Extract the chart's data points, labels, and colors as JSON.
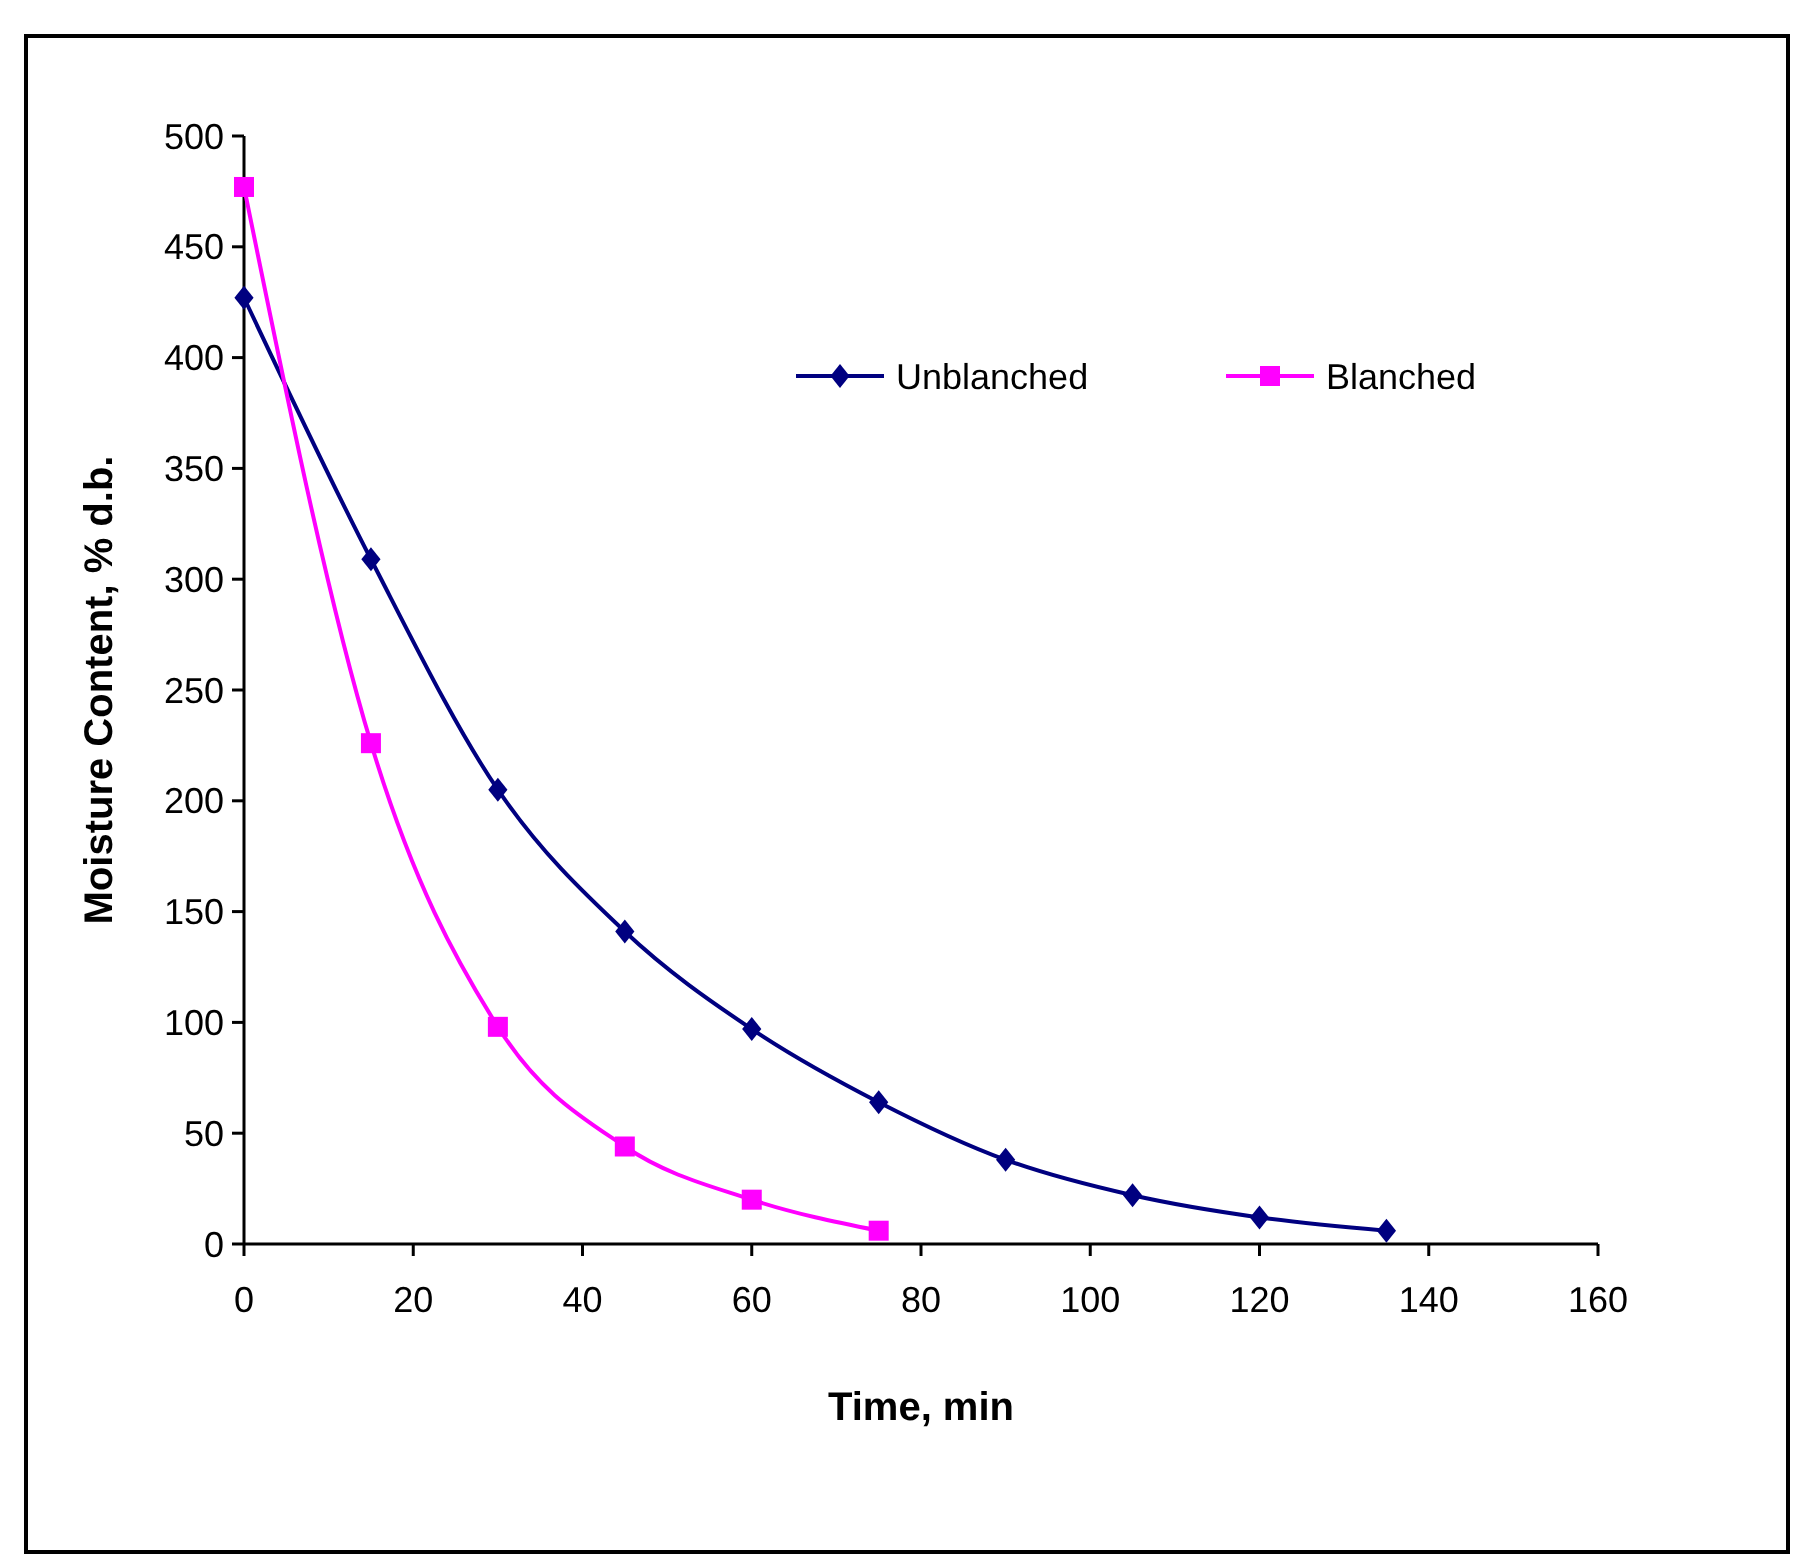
{
  "chart_data": {
    "type": "line",
    "xlabel": "Time, min",
    "ylabel": "Moisture Content, % d.b.",
    "xlim": [
      0,
      160
    ],
    "xticks": [
      0,
      20,
      40,
      60,
      80,
      100,
      120,
      140,
      160
    ],
    "ylim": [
      0,
      500
    ],
    "yticks": [
      0,
      50,
      100,
      150,
      200,
      250,
      300,
      350,
      400,
      450,
      500
    ],
    "grid": false,
    "legend": "top",
    "series": [
      {
        "name": "Unblanched",
        "color": "#000080",
        "marker": "diamond",
        "x": [
          0,
          15,
          30,
          45,
          60,
          75,
          90,
          105,
          120,
          135
        ],
        "values": [
          427,
          309,
          205,
          141,
          97,
          64,
          38,
          22,
          12,
          6
        ]
      },
      {
        "name": "Blanched",
        "color": "#ff00ff",
        "marker": "square",
        "x": [
          0,
          15,
          30,
          45,
          60,
          75
        ],
        "values": [
          477,
          226,
          98,
          44,
          20,
          6
        ]
      }
    ]
  }
}
